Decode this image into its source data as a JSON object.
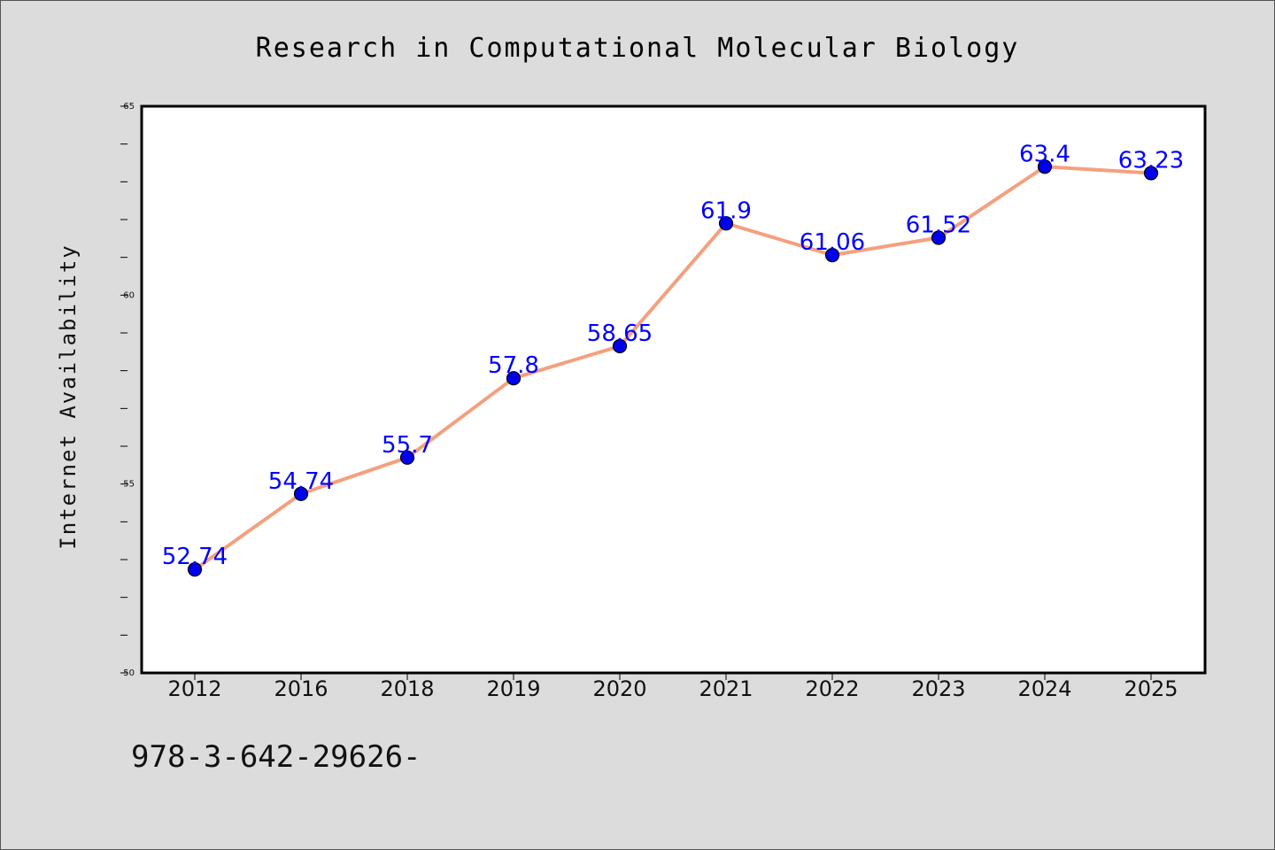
{
  "chart_data": {
    "type": "line",
    "title": "Research in Computational Molecular Biology",
    "xlabel": "",
    "ylabel": "Internet Availability",
    "categories": [
      "2012",
      "2016",
      "2018",
      "2019",
      "2020",
      "2021",
      "2022",
      "2023",
      "2024",
      "2025"
    ],
    "series": [
      {
        "values": [
          52.74,
          54.74,
          55.7,
          57.8,
          58.65,
          61.9,
          61.06,
          61.52,
          63.4,
          63.23
        ],
        "data_labels": [
          "52.74",
          "54.74",
          "55.7",
          "57.8",
          "58.65",
          "61.9",
          "61.06",
          "61.52",
          "63.4",
          "63.23"
        ],
        "line_color": "#f4a07e",
        "marker_color": "#0000ee"
      }
    ],
    "ylim": [
      50,
      65
    ],
    "yticks": [
      "50",
      "55",
      "60",
      "65"
    ],
    "grid": false,
    "legend": "none"
  },
  "footnote": "978-3-642-29626-"
}
